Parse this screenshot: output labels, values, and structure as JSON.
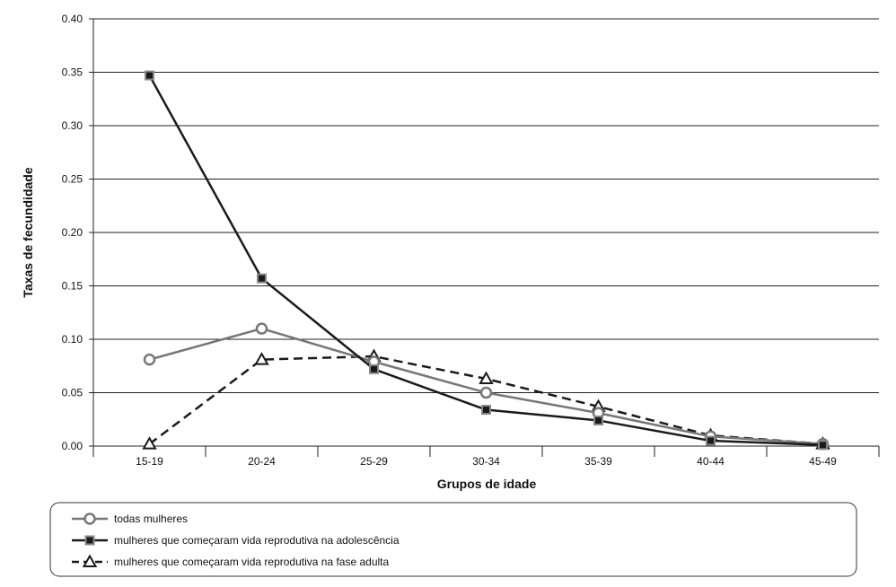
{
  "chart_data": {
    "type": "line",
    "title": "",
    "xlabel": "Grupos de idade",
    "ylabel": "Taxas de fecundidade",
    "ylim": [
      0,
      0.4
    ],
    "yticks": [
      "0.00",
      "0.05",
      "0.10",
      "0.15",
      "0.20",
      "0.25",
      "0.30",
      "0.35",
      "0.40"
    ],
    "yticks_values": [
      0,
      0.05,
      0.1,
      0.15,
      0.2,
      0.25,
      0.3,
      0.35,
      0.4
    ],
    "categories": [
      "15-19",
      "20-24",
      "25-29",
      "30-34",
      "35-39",
      "40-44",
      "45-49"
    ],
    "grid": "horizontal",
    "legend_position": "bottom",
    "series": [
      {
        "name": "todas mulheres",
        "values": [
          0.081,
          0.11,
          0.079,
          0.05,
          0.031,
          0.009,
          0.002
        ],
        "color": "#777777",
        "marker": "circle",
        "dash": "solid"
      },
      {
        "name": "mulheres que começaram vida reprodutiva na adolescência",
        "values": [
          0.347,
          0.157,
          0.072,
          0.034,
          0.024,
          0.005,
          0.001
        ],
        "color": "#1a1a1a",
        "marker": "square",
        "dash": "solid"
      },
      {
        "name": "mulheres que começaram vida reprodutiva na fase adulta",
        "values": [
          0.002,
          0.081,
          0.084,
          0.063,
          0.037,
          0.01,
          0.002
        ],
        "color": "#1a1a1a",
        "marker": "triangle",
        "dash": "dashed"
      }
    ]
  }
}
